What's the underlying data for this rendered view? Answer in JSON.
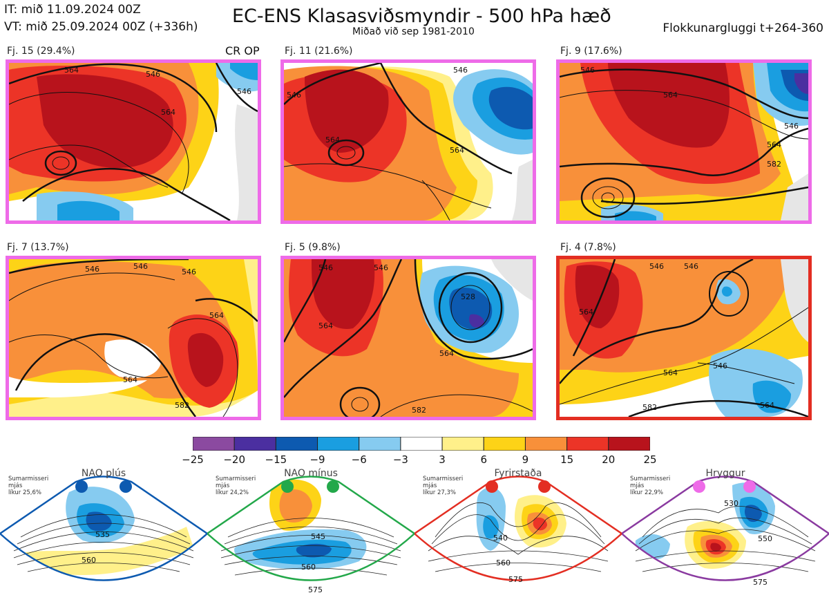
{
  "header": {
    "it": "IT: mið 11.09.2024 00Z",
    "vt": "VT: mið 25.09.2024 00Z  (+336h)",
    "title": "EC-ENS Klasasviðsmyndir - 500 hPa hæð",
    "subtitle": "Miðað við sep 1981-2010",
    "window": "Flokkunargluggi t+264-360"
  },
  "crop_label": "CR OP",
  "clusters": [
    {
      "label": "Fj. 15 (29.4%)",
      "border": "#ee6be8",
      "contours": [
        "564",
        "546",
        "546",
        "564"
      ]
    },
    {
      "label": "Fj. 11 (21.6%)",
      "border": "#ee6be8",
      "contours": [
        "546",
        "564",
        "564",
        "546"
      ]
    },
    {
      "label": "Fj. 9 (17.6%)",
      "border": "#ee6be8",
      "contours": [
        "546",
        "564",
        "564",
        "546",
        "582"
      ]
    },
    {
      "label": "Fj. 7 (13.7%)",
      "border": "#ee6be8",
      "contours": [
        "546",
        "546",
        "546",
        "564",
        "564",
        "582"
      ]
    },
    {
      "label": "Fj. 5 (9.8%)",
      "border": "#ee6be8",
      "contours": [
        "546",
        "546",
        "528",
        "564",
        "564",
        "582"
      ]
    },
    {
      "label": "Fj. 4 (7.8%)",
      "border": "#e32e22",
      "contours": [
        "546",
        "546",
        "564",
        "564",
        "546",
        "582",
        "564"
      ]
    }
  ],
  "colorbar": {
    "ticks": [
      "−25",
      "−20",
      "−15",
      "−9",
      "−6",
      "−3",
      "3",
      "6",
      "9",
      "15",
      "20",
      "25"
    ],
    "colors": [
      "#8b4aa0",
      "#4b2fa0",
      "#0d5ab0",
      "#1a9ee0",
      "#86cbf0",
      "#ffffff",
      "#fff08a",
      "#fdd317",
      "#f8903a",
      "#ec3427",
      "#b8131c"
    ]
  },
  "regimes": [
    {
      "name": "NAO plús",
      "stat": "Sumarmisseri\nmjás\nlíkur 25,6%",
      "color": "#0d5ab0",
      "contours": [
        "535",
        "560"
      ]
    },
    {
      "name": "NAO mínus",
      "stat": "Sumarmisseri\nmjás\nlíkur 24,2%",
      "color": "#23a84a",
      "contours": [
        "545",
        "560",
        "575"
      ]
    },
    {
      "name": "Fyrirstaða",
      "stat": "Sumarmisseri\nmjás\nlíkur 27,3%",
      "color": "#e32e22",
      "contours": [
        "540",
        "560",
        "575"
      ]
    },
    {
      "name": "Hryggur",
      "stat": "Sumarmisseri\nmjás\nlíkur 22,9%",
      "color": "#ee6be8",
      "outline": "#8a3aa0",
      "contours": [
        "530",
        "550",
        "575"
      ]
    }
  ]
}
